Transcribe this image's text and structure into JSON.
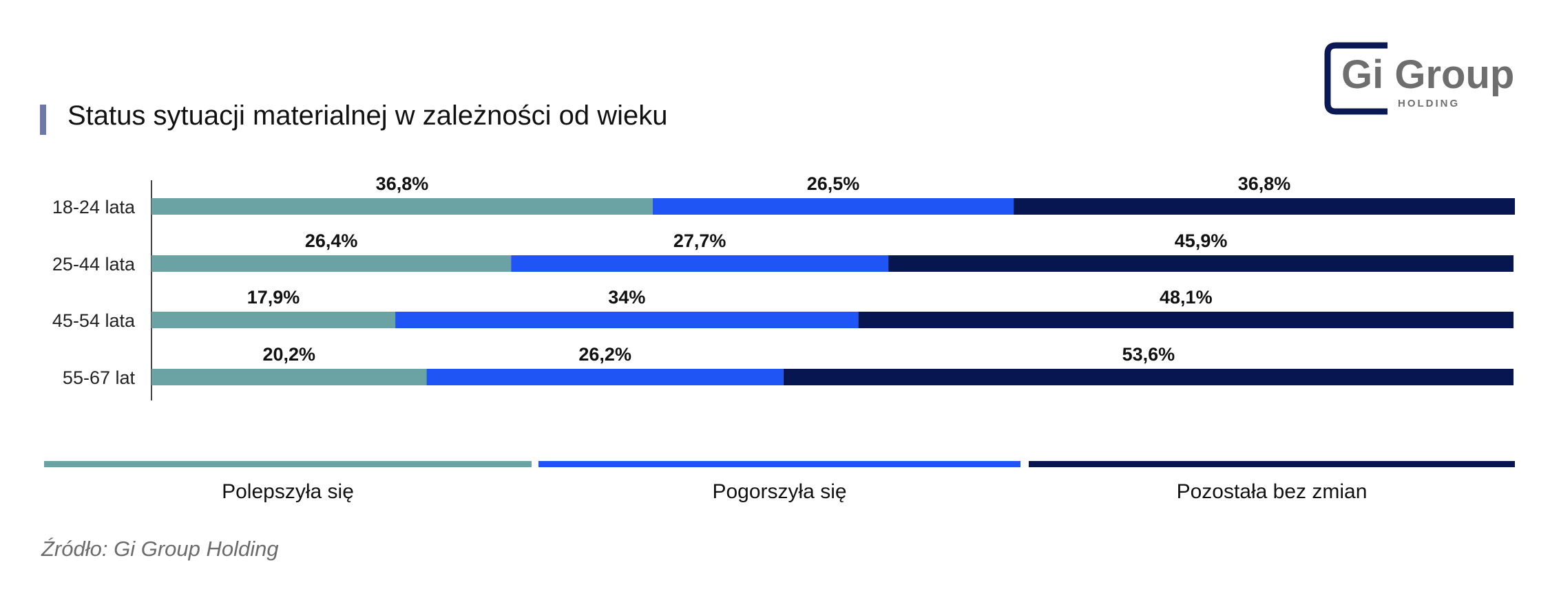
{
  "title": "Status sytuacji materialnej w zależności od wieku",
  "source": "Źródło: Gi Group Holding",
  "logo": {
    "brand": "Gi Group",
    "sub": "HOLDING"
  },
  "colors": {
    "accent_bar": "#6b78a8",
    "improved": "#6ba3a4",
    "worsened": "#1f55f5",
    "unchanged": "#071650",
    "logo_frame": "#0b1a55",
    "logo_text": "#6e6e6e"
  },
  "legend": [
    {
      "label": "Polepszyła się",
      "color": "#6ba3a4"
    },
    {
      "label": "Pogorszyła się",
      "color": "#1f55f5"
    },
    {
      "label": "Pozostała bez zmian",
      "color": "#071650"
    }
  ],
  "chart_data": {
    "type": "bar",
    "orientation": "horizontal",
    "stacked": true,
    "categories": [
      "18-24 lata",
      "25-44 lata",
      "45-54 lata",
      "55-67 lat"
    ],
    "series": [
      {
        "name": "Polepszyła się",
        "values": [
          36.8,
          26.4,
          17.9,
          20.2
        ],
        "labels": [
          "36,8%",
          "26,4%",
          "17,9%",
          "20,2%"
        ],
        "color": "#6ba3a4"
      },
      {
        "name": "Pogorszyła się",
        "values": [
          26.5,
          27.7,
          34,
          26.2
        ],
        "labels": [
          "26,5%",
          "27,7%",
          "34%",
          "26,2%"
        ],
        "color": "#1f55f5"
      },
      {
        "name": "Pozostała bez zmian",
        "values": [
          36.8,
          45.9,
          48.1,
          53.6
        ],
        "labels": [
          "36,8%",
          "45,9%",
          "48,1%",
          "53,6%"
        ],
        "color": "#071650"
      }
    ],
    "xlim": [
      0,
      100.1
    ],
    "legend_position": "bottom",
    "grid": false
  }
}
